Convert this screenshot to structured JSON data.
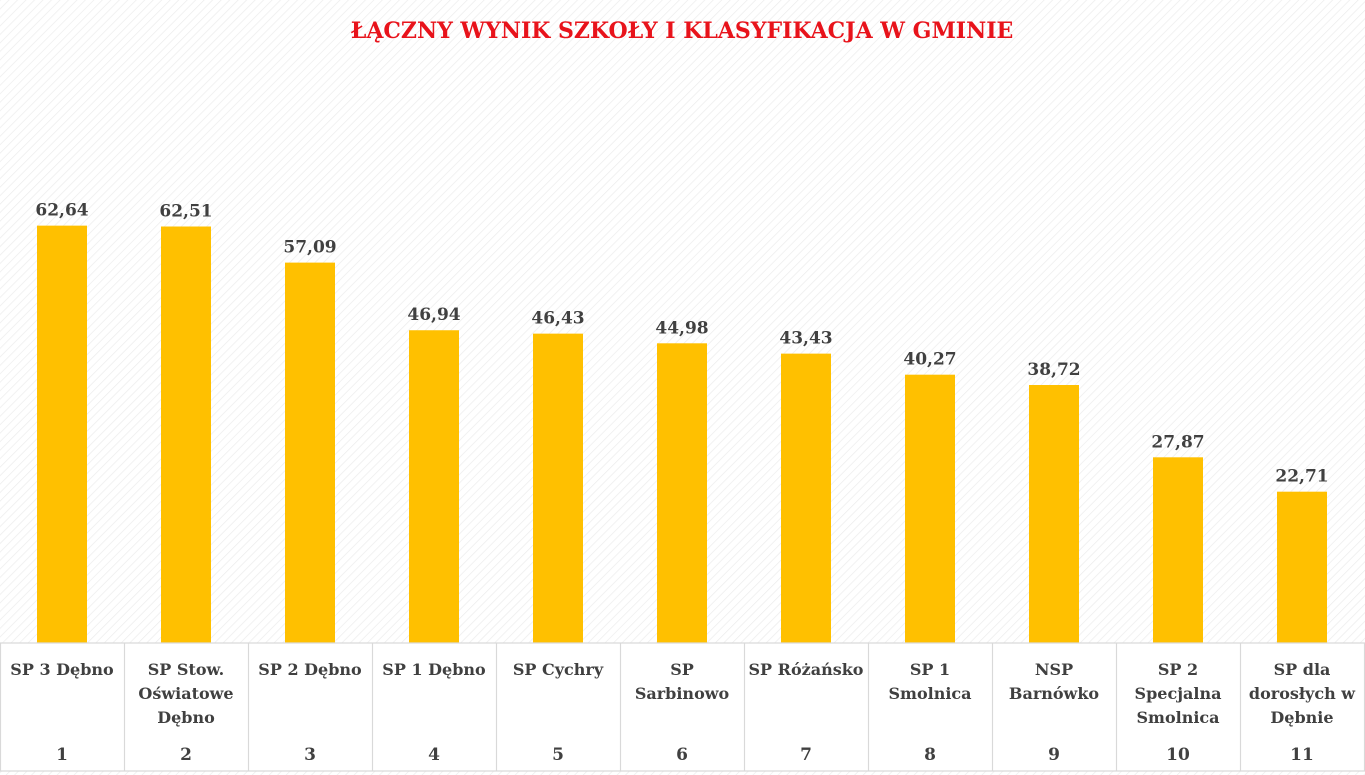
{
  "chart_data": {
    "type": "bar",
    "title": "ŁĄCZNY WYNIK SZKOŁY I KLASYFIKACJA W GMINIE",
    "categories": [
      "SP 3 Dębno",
      "SP Stow. Oświatowe Dębno",
      "SP 2 Dębno",
      "SP 1 Dębno",
      "SP Cychry",
      "SP Sarbinowo",
      "SP Różańsko",
      "SP 1 Smolnica",
      "NSP Barnówko",
      "SP 2 Specjalna Smolnica",
      "SP dla dorosłych w Dębnie"
    ],
    "category_lines": [
      [
        "SP 3 Dębno"
      ],
      [
        "SP Stow.",
        "Oświatowe",
        "Dębno"
      ],
      [
        "SP 2 Dębno"
      ],
      [
        "SP 1 Dębno"
      ],
      [
        "SP Cychry"
      ],
      [
        "SP",
        "Sarbinowo"
      ],
      [
        "SP Różańsko"
      ],
      [
        "SP 1",
        "Smolnica"
      ],
      [
        "NSP",
        "Barnówko"
      ],
      [
        "SP 2",
        "Specjalna",
        "Smolnica"
      ],
      [
        "SP dla",
        "dorosłych w",
        "Dębnie"
      ]
    ],
    "values": [
      62.64,
      62.51,
      57.09,
      46.94,
      46.43,
      44.98,
      43.43,
      40.27,
      38.72,
      27.87,
      22.71
    ],
    "value_labels": [
      "62,64",
      "62,51",
      "57,09",
      "46,94",
      "46,43",
      "44,98",
      "43,43",
      "40,27",
      "38,72",
      "27,87",
      "22,71"
    ],
    "ranks": [
      "1",
      "2",
      "3",
      "4",
      "5",
      "6",
      "7",
      "8",
      "9",
      "10",
      "11"
    ],
    "ylim": [
      0,
      89
    ],
    "grid": false,
    "legend": "none",
    "bar_color": "#ffc000",
    "title_color": "#e8131b",
    "text_color": "#404040",
    "table_line_color": "#d9d9d9"
  }
}
